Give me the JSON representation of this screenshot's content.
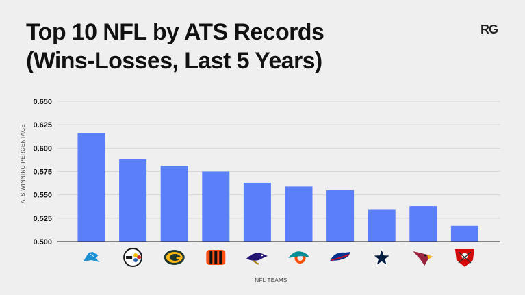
{
  "header": {
    "title_line1": "Top 10 NFL by ATS Records",
    "title_line2": "(Wins-Losses, Last 5 Years)",
    "brand": "RG"
  },
  "colors": {
    "bar": "#5b7ef9",
    "grid": "#d7d7da",
    "axis": "#1a1a1a"
  },
  "chart_data": {
    "type": "bar",
    "title": "Top 10 NFL by ATS Records (Wins-Losses, Last 5 Years)",
    "xlabel": "NFL TEAMS",
    "ylabel": "ATS WINNING PERCENTAGE",
    "ylim": [
      0.5,
      0.65
    ],
    "yticks": [
      "0.500",
      "0.525",
      "0.550",
      "0.575",
      "0.600",
      "0.625",
      "0.650"
    ],
    "grid": true,
    "categories": [
      "lions-logo",
      "steelers-logo",
      "packers-logo",
      "bengals-logo",
      "ravens-logo",
      "dolphins-logo",
      "bills-logo",
      "cowboys-logo",
      "cardinals-logo",
      "buccaneers-logo"
    ],
    "values": [
      0.616,
      0.588,
      0.581,
      0.575,
      0.563,
      0.559,
      0.555,
      0.534,
      0.538,
      0.517
    ]
  }
}
